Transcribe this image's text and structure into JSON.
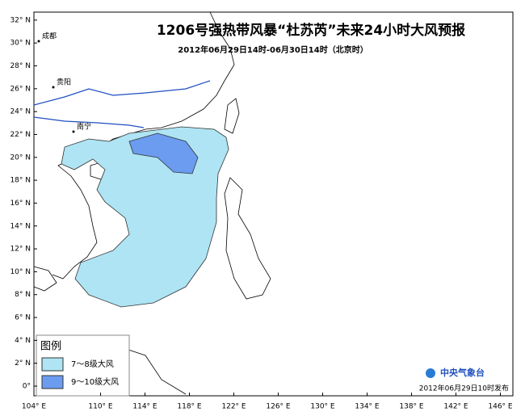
{
  "title": "1206号强热带风暴“杜苏芮”未来24小时大风预报",
  "subtitle": "2012年06月29日14时-06月30日14时（北京时）",
  "map": {
    "lat_ticks": [
      {
        "value": 0,
        "label": "0°"
      },
      {
        "value": 2,
        "label": "2° N"
      },
      {
        "value": 4,
        "label": "4° N"
      },
      {
        "value": 6,
        "label": "6° N"
      },
      {
        "value": 8,
        "label": "8° N"
      },
      {
        "value": 10,
        "label": "10° N"
      },
      {
        "value": 12,
        "label": "12° N"
      },
      {
        "value": 14,
        "label": "14° N"
      },
      {
        "value": 16,
        "label": "16° N"
      },
      {
        "value": 18,
        "label": "18° N"
      },
      {
        "value": 20,
        "label": "20° N"
      },
      {
        "value": 22,
        "label": "22° N"
      },
      {
        "value": 24,
        "label": "24° N"
      },
      {
        "value": 26,
        "label": "26° N"
      },
      {
        "value": 28,
        "label": "28° N"
      },
      {
        "value": 30,
        "label": "30° N"
      },
      {
        "value": 32,
        "label": "32° N"
      }
    ],
    "lon_ticks": [
      {
        "value": 104,
        "label": "104° E"
      },
      {
        "value": 110,
        "label": "110° E"
      },
      {
        "value": 114,
        "label": "114° E"
      },
      {
        "value": 118,
        "label": "118° E"
      },
      {
        "value": 122,
        "label": "122° E"
      },
      {
        "value": 126,
        "label": "126° E"
      },
      {
        "value": 130,
        "label": "130° E"
      },
      {
        "value": 134,
        "label": "134° E"
      },
      {
        "value": 138,
        "label": "138° E"
      },
      {
        "value": 142,
        "label": "142° E"
      },
      {
        "value": 146,
        "label": "146° E"
      }
    ],
    "places": [
      "成都",
      "贵阳",
      "南宁"
    ]
  },
  "legend": {
    "title": "图例",
    "items": [
      {
        "label": "7～8级大风",
        "color": "#aee4f3"
      },
      {
        "label": "9～10级大风",
        "color": "#6b9cf0"
      }
    ]
  },
  "footer": {
    "agency": "中央气象台",
    "issued": "2012年06月29日10时发布"
  }
}
